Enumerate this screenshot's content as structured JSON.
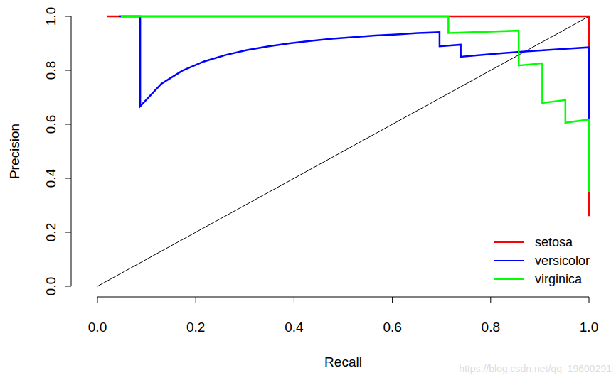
{
  "chart_data": {
    "type": "line",
    "x_label": "Recall",
    "y_label": "Precision",
    "xlim": [
      0,
      1
    ],
    "ylim": [
      0,
      1
    ],
    "xticks": [
      {
        "value": 0,
        "label": "0.0"
      },
      0.2,
      0.4,
      0.6,
      0.8,
      {
        "value": 1,
        "label": "1.0"
      }
    ],
    "yticks": [
      {
        "value": 0,
        "label": "0.0"
      },
      0.2,
      0.4,
      0.6,
      0.8,
      {
        "value": 1,
        "label": "1.0"
      }
    ],
    "legend": "bottom-right",
    "grid": false,
    "series": [
      {
        "name": "setosa",
        "color": "#ff0000",
        "x": [
          0.02,
          1.0,
          1.0
        ],
        "values": [
          1.0,
          1.0,
          0.26
        ]
      },
      {
        "name": "versicolor",
        "color": "#0000ff",
        "x": [
          0.0435,
          0.087,
          0.087,
          0.13,
          0.174,
          0.217,
          0.261,
          0.304,
          0.348,
          0.391,
          0.435,
          0.478,
          0.522,
          0.565,
          0.609,
          0.652,
          0.696,
          0.696,
          0.739,
          0.739,
          0.783,
          0.826,
          0.87,
          0.913,
          0.957,
          1.0,
          1.0
        ],
        "values": [
          1.0,
          1.0,
          0.667,
          0.75,
          0.8,
          0.833,
          0.857,
          0.875,
          0.889,
          0.9,
          0.909,
          0.917,
          0.923,
          0.929,
          0.933,
          0.938,
          0.941,
          0.889,
          0.895,
          0.85,
          0.857,
          0.864,
          0.87,
          0.875,
          0.88,
          0.885,
          0.35
        ]
      },
      {
        "name": "virginica",
        "color": "#00ff00",
        "x": [
          0.0476,
          0.714,
          0.714,
          0.857,
          0.857,
          0.905,
          0.905,
          0.952,
          0.952,
          1.0,
          1.0
        ],
        "values": [
          1.0,
          1.0,
          0.938,
          0.947,
          0.818,
          0.826,
          0.679,
          0.69,
          0.606,
          0.618,
          0.35
        ]
      }
    ],
    "reference_line": {
      "x": [
        0,
        1
      ],
      "values": [
        0,
        1
      ],
      "color": "#000000"
    },
    "watermark": "https://blog.csdn.net/qq_19600291"
  }
}
